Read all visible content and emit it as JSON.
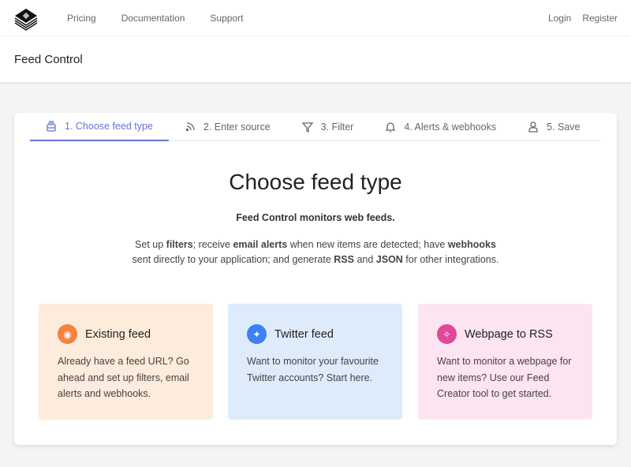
{
  "nav": {
    "links": [
      "Pricing",
      "Documentation",
      "Support"
    ],
    "login": "Login",
    "register": "Register"
  },
  "header": {
    "title": "Feed Control"
  },
  "steps": [
    "1. Choose feed type",
    "2. Enter source",
    "3. Filter",
    "4. Alerts & webhooks",
    "5. Save"
  ],
  "main": {
    "title": "Choose feed type",
    "lead": "Feed Control monitors web feeds.",
    "desc": {
      "p1": "Set up ",
      "b1": "filters",
      "p2": "; receive ",
      "b2": "email alerts",
      "p3": " when new items are detected; have ",
      "b3": "webhooks",
      "p4": "sent directly to your application; and generate ",
      "b4": "RSS",
      "p5": " and ",
      "b5": "JSON",
      "p6": " for other integrations."
    }
  },
  "options": [
    {
      "title": "Existing feed",
      "text": "Already have a feed URL? Go ahead and set up filters, email alerts and webhooks.",
      "icon": "rss-icon",
      "bg": "#fdebdc",
      "color": "#f4813f"
    },
    {
      "title": "Twitter feed",
      "text": "Want to monitor your favourite Twitter accounts? Start here.",
      "icon": "twitter-icon",
      "bg": "#deebfb",
      "color": "#3b82f6"
    },
    {
      "title": "Webpage to RSS",
      "text": "Want to monitor a webpage for new items? Use our Feed Creator tool to get started.",
      "icon": "sparkles-icon",
      "bg": "#fce4f0",
      "color": "#e0499a"
    }
  ]
}
